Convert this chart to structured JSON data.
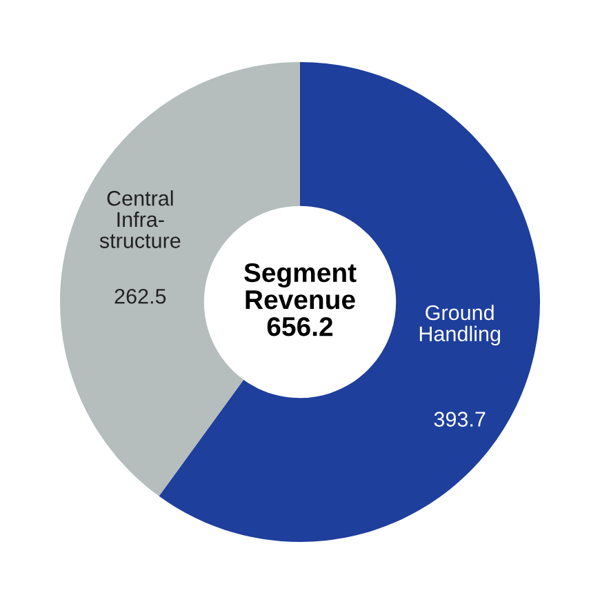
{
  "chart_data": {
    "type": "donut",
    "categories": [
      "Ground\nHandling",
      "Central\nInfra-\nstructure"
    ],
    "values": [
      393.7,
      262.5
    ],
    "colors": [
      "#1e3f9c",
      "#b5bdbd"
    ],
    "data_labels": true,
    "annotations": [
      "Segment\nRevenue\n656.2"
    ]
  }
}
